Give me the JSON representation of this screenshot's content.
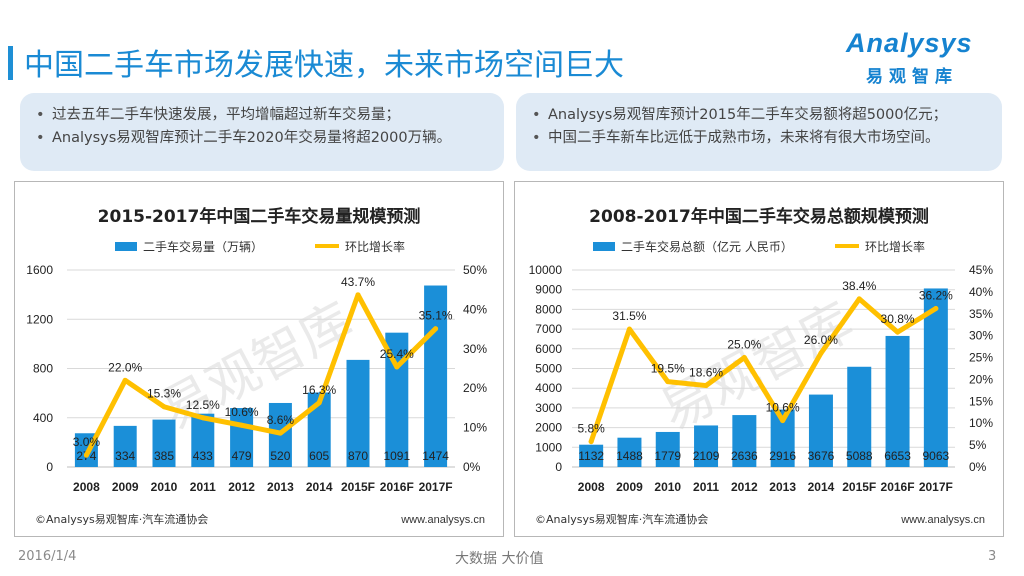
{
  "page": {
    "title": "中国二手车市场发展快速，未来市场空间巨大",
    "logo_text": "Analysys",
    "logo_subtext": "易观智库",
    "date": "2016/1/4",
    "slogan": "大数据    大价值",
    "page_number": "3"
  },
  "bullets_left": [
    "过去五年二手车快速发展，平均增幅超过新车交易量；",
    "Analysys易观智库预计二手车2020年交易量将超2000万辆。"
  ],
  "bullets_right": [
    "Analysys易观智库预计2015年二手车交易额将超5000亿元；",
    "中国二手车新车比远低于成熟市场，未来将有很大市场空间。"
  ],
  "colors": {
    "accent": "#1a8ad4",
    "bar": "#1b8fd8",
    "line": "#ffc000",
    "box": "#dfeaf5"
  },
  "chart_data": [
    {
      "type": "bar",
      "title": "2015-2017年中国二手车交易量规模预测",
      "categories": [
        "2008",
        "2009",
        "2010",
        "2011",
        "2012",
        "2013",
        "2014",
        "2015F",
        "2016F",
        "2017F"
      ],
      "series": [
        {
          "name": "二手车交易量（万辆）",
          "type": "bar",
          "axis": "left",
          "values": [
            274,
            334,
            385,
            433,
            479,
            520,
            605,
            870,
            1091,
            1474
          ]
        },
        {
          "name": "环比增长率",
          "type": "line",
          "axis": "right",
          "values": [
            3.0,
            22.0,
            15.3,
            12.5,
            10.6,
            8.6,
            16.3,
            43.7,
            25.4,
            35.1
          ]
        }
      ],
      "bar_labels": [
        "274",
        "334",
        "385",
        "433",
        "479",
        "520",
        "605",
        "870",
        "1091",
        "1474"
      ],
      "line_labels": [
        "3.0%",
        "22.0%",
        "15.3%",
        "12.5%",
        "10.6%",
        "8.6%",
        "16.3%",
        "43.7%",
        "25.4%",
        "35.1%"
      ],
      "y_left": {
        "min": 0,
        "max": 1600,
        "ticks": [
          "0",
          "400",
          "800",
          "1200",
          "1600"
        ]
      },
      "y_right": {
        "min": 0,
        "max": 50,
        "ticks": [
          "0%",
          "10%",
          "20%",
          "30%",
          "40%",
          "50%"
        ]
      },
      "source": "©Analysys易观智库·汽车流通协会",
      "website": "www.analysys.cn",
      "watermark": "易观智库"
    },
    {
      "type": "bar",
      "title": "2008-2017年中国二手车交易总额规模预测",
      "categories": [
        "2008",
        "2009",
        "2010",
        "2011",
        "2012",
        "2013",
        "2014",
        "2015F",
        "2016F",
        "2017F"
      ],
      "series": [
        {
          "name": "二手车交易总额（亿元 人民币）",
          "type": "bar",
          "axis": "left",
          "values": [
            1132,
            1488,
            1779,
            2109,
            2636,
            2916,
            3676,
            5088,
            6653,
            9063
          ]
        },
        {
          "name": "环比增长率",
          "type": "line",
          "axis": "right",
          "values": [
            5.8,
            31.5,
            19.5,
            18.6,
            25.0,
            10.6,
            26.0,
            38.4,
            30.8,
            36.2
          ]
        }
      ],
      "bar_labels": [
        "1132",
        "1488",
        "1779",
        "2109",
        "2636",
        "2916",
        "3676",
        "5088",
        "6653",
        "9063"
      ],
      "line_labels": [
        "5.8%",
        "31.5%",
        "19.5%",
        "18.6%",
        "25.0%",
        "10.6%",
        "26.0%",
        "38.4%",
        "30.8%",
        "36.2%"
      ],
      "y_left": {
        "min": 0,
        "max": 10000,
        "ticks": [
          "0",
          "1000",
          "2000",
          "3000",
          "4000",
          "5000",
          "6000",
          "7000",
          "8000",
          "9000",
          "10000"
        ]
      },
      "y_right": {
        "min": 0,
        "max": 45,
        "ticks": [
          "0%",
          "5%",
          "10%",
          "15%",
          "20%",
          "25%",
          "30%",
          "35%",
          "40%",
          "45%"
        ]
      },
      "source": "©Analysys易观智库·汽车流通协会",
      "website": "www.analysys.cn",
      "watermark": "易观智库"
    }
  ]
}
